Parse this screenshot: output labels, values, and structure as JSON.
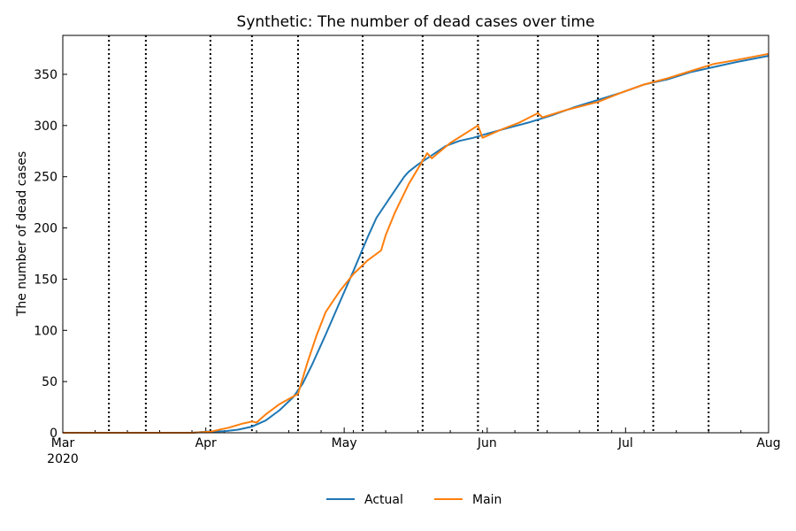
{
  "chart_data": {
    "type": "line",
    "title": "Synthetic: The number of dead cases over time",
    "xlabel": "",
    "ylabel": "The number of dead cases",
    "x_range": [
      "2020-03-01",
      "2020-08-01"
    ],
    "ylim": [
      0,
      388
    ],
    "y_ticks": [
      0,
      50,
      100,
      150,
      200,
      250,
      300,
      350
    ],
    "x_ticks": [
      {
        "date": "2020-03-01",
        "label": "Mar",
        "sublabel": "2020"
      },
      {
        "date": "2020-04-01",
        "label": "Apr",
        "sublabel": ""
      },
      {
        "date": "2020-05-01",
        "label": "May",
        "sublabel": ""
      },
      {
        "date": "2020-06-01",
        "label": "Jun",
        "sublabel": ""
      },
      {
        "date": "2020-07-01",
        "label": "Jul",
        "sublabel": ""
      },
      {
        "date": "2020-08-01",
        "label": "Aug",
        "sublabel": ""
      }
    ],
    "grid": false,
    "legend_position": "bottom-center",
    "change_points": [
      "2020-03-11",
      "2020-03-19",
      "2020-04-02",
      "2020-04-11",
      "2020-04-21",
      "2020-05-05",
      "2020-05-18",
      "2020-05-30",
      "2020-06-12",
      "2020-06-25",
      "2020-07-07",
      "2020-07-19"
    ],
    "series": [
      {
        "name": "Actual",
        "color": "#1f77b4",
        "points": [
          [
            "2020-03-01",
            0
          ],
          [
            "2020-03-15",
            0
          ],
          [
            "2020-03-29",
            0
          ],
          [
            "2020-04-01",
            1
          ],
          [
            "2020-04-05",
            1.5
          ],
          [
            "2020-04-08",
            3
          ],
          [
            "2020-04-11",
            6
          ],
          [
            "2020-04-14",
            12
          ],
          [
            "2020-04-17",
            22
          ],
          [
            "2020-04-20",
            35
          ],
          [
            "2020-04-22",
            48
          ],
          [
            "2020-04-24",
            66
          ],
          [
            "2020-04-27",
            96
          ],
          [
            "2020-04-30",
            127
          ],
          [
            "2020-05-03",
            158
          ],
          [
            "2020-05-06",
            190
          ],
          [
            "2020-05-08",
            210
          ],
          [
            "2020-05-11",
            230
          ],
          [
            "2020-05-14",
            250
          ],
          [
            "2020-05-15",
            255
          ],
          [
            "2020-05-17",
            262
          ],
          [
            "2020-05-20",
            271
          ],
          [
            "2020-05-23",
            280
          ],
          [
            "2020-05-26",
            285
          ],
          [
            "2020-05-29",
            288
          ],
          [
            "2020-06-01",
            292
          ],
          [
            "2020-06-05",
            297
          ],
          [
            "2020-06-10",
            303
          ],
          [
            "2020-06-15",
            310
          ],
          [
            "2020-06-20",
            318
          ],
          [
            "2020-06-25",
            325
          ],
          [
            "2020-06-30",
            332
          ],
          [
            "2020-07-05",
            340
          ],
          [
            "2020-07-10",
            345
          ],
          [
            "2020-07-15",
            352
          ],
          [
            "2020-07-20",
            357
          ],
          [
            "2020-07-25",
            362
          ],
          [
            "2020-08-01",
            368
          ]
        ]
      },
      {
        "name": "Main",
        "color": "#ff7f0e",
        "points": [
          [
            "2020-03-01",
            0
          ],
          [
            "2020-03-15",
            0
          ],
          [
            "2020-03-29",
            0
          ],
          [
            "2020-04-02",
            1
          ],
          [
            "2020-04-06",
            5
          ],
          [
            "2020-04-09",
            9
          ],
          [
            "2020-04-11",
            11
          ],
          [
            "2020-04-12",
            10
          ],
          [
            "2020-04-14",
            18
          ],
          [
            "2020-04-17",
            28
          ],
          [
            "2020-04-21",
            38
          ],
          [
            "2020-04-23",
            68
          ],
          [
            "2020-04-25",
            95
          ],
          [
            "2020-04-27",
            118
          ],
          [
            "2020-04-30",
            138
          ],
          [
            "2020-05-03",
            155
          ],
          [
            "2020-05-06",
            168
          ],
          [
            "2020-05-09",
            178
          ],
          [
            "2020-05-10",
            193
          ],
          [
            "2020-05-12",
            215
          ],
          [
            "2020-05-15",
            243
          ],
          [
            "2020-05-19",
            273
          ],
          [
            "2020-05-20",
            268
          ],
          [
            "2020-05-24",
            283
          ],
          [
            "2020-05-30",
            300
          ],
          [
            "2020-05-31",
            288
          ],
          [
            "2020-06-04",
            296
          ],
          [
            "2020-06-08",
            303
          ],
          [
            "2020-06-12",
            312
          ],
          [
            "2020-06-13",
            308
          ],
          [
            "2020-06-18",
            315
          ],
          [
            "2020-06-25",
            323
          ],
          [
            "2020-06-30",
            332
          ],
          [
            "2020-07-05",
            340
          ],
          [
            "2020-07-10",
            346
          ],
          [
            "2020-07-15",
            353
          ],
          [
            "2020-07-20",
            360
          ],
          [
            "2020-07-25",
            364
          ],
          [
            "2020-08-01",
            370
          ]
        ]
      }
    ]
  }
}
